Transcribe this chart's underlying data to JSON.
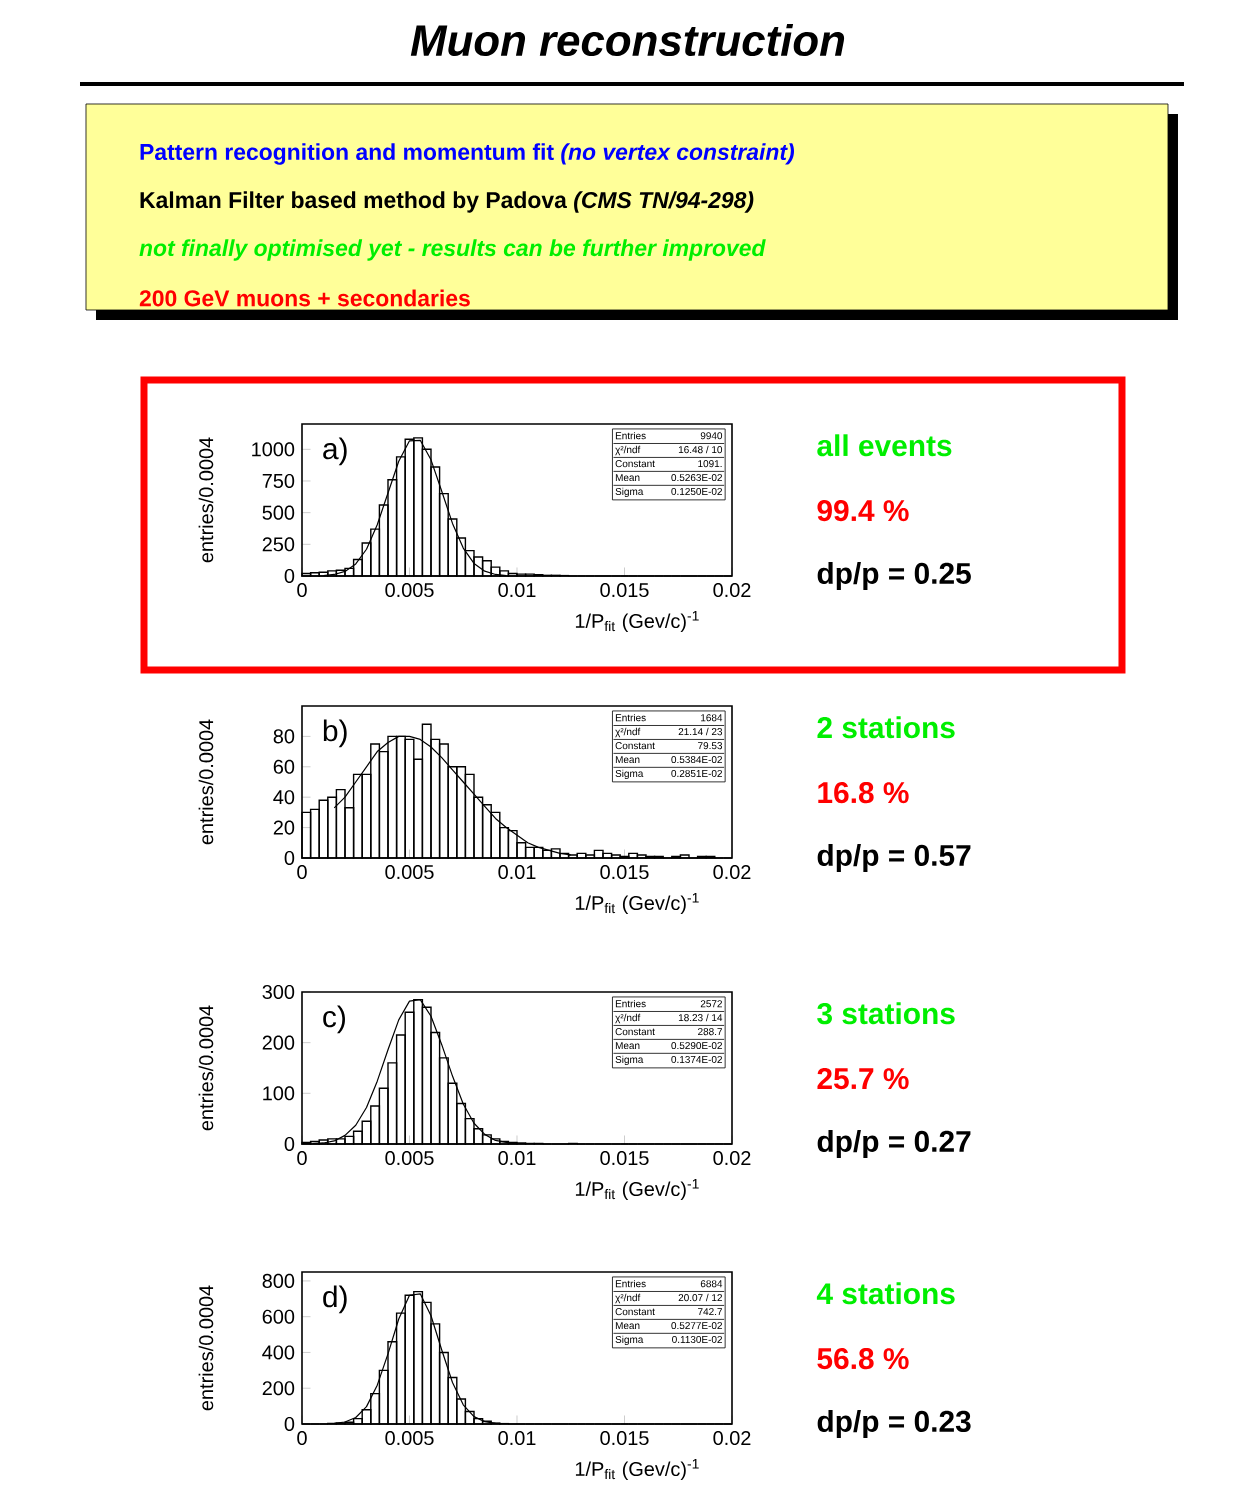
{
  "chart_data": [
    {
      "type": "other",
      "title": "Muon reconstruction",
      "annotations": [
        "Pattern recognition and momentum fit *(no vertex constraint)*",
        "Kalman Filter based method by Padova  *(CMS TN/94-298)*",
        "not finally optimised yet - results can be further improved",
        "200 GeV muons + secondaries"
      ]
    },
    {
      "type": "histogram",
      "xlabel": "1/P$_{fit}$ (Gev/c)$^{-1}$",
      "ylabel": "entries/0.0004",
      "color": "#000000",
      "xlim": [
        0,
        0.02
      ],
      "xticks": [
        0,
        0.005,
        0.01,
        0.015,
        0.02
      ],
      "ylim": [
        0,
        1200
      ],
      "yticks": [
        0,
        250,
        500,
        750,
        1000
      ],
      "bins": [
        0,
        0.0004,
        0.0008,
        0.0012,
        0.0016,
        0.002,
        0.0024,
        0.0028,
        0.0032,
        0.0036,
        0.004,
        0.0044,
        0.0048,
        0.0052,
        0.0056,
        0.006,
        0.0064,
        0.0068,
        0.0072,
        0.0076,
        0.008,
        0.0084,
        0.0088,
        0.0092,
        0.0096,
        0.01,
        0.0104,
        0.0108,
        0.0112,
        0.0116,
        0.012,
        0.0124,
        0.0128,
        0.0132,
        0.0136,
        0.014,
        0.0144,
        0.0148,
        0.0152,
        0.0156,
        0.016,
        0.0164,
        0.0168,
        0.0172,
        0.0176,
        0.018,
        0.0184,
        0.0188,
        0.0192,
        0.0196,
        0.02
      ],
      "values": [
        20,
        25,
        30,
        40,
        45,
        60,
        130,
        260,
        370,
        560,
        760,
        940,
        1080,
        1090,
        1000,
        860,
        650,
        450,
        300,
        200,
        150,
        120,
        70,
        40,
        20,
        15,
        15,
        10,
        5,
        5,
        3,
        0,
        0,
        0,
        0,
        0,
        0,
        0,
        0,
        0,
        0,
        0,
        0,
        0,
        0,
        0,
        0,
        0,
        0,
        0
      ],
      "series": [
        {
          "type": "line",
          "color": "#000000",
          "x": [
            0.001,
            0.0015,
            0.002,
            0.0025,
            0.003,
            0.0035,
            0.004,
            0.0045,
            0.005,
            0.0055,
            0.006,
            0.0065,
            0.007,
            0.0075,
            0.008,
            0.0085,
            0.009,
            0.0095
          ],
          "values": [
            3,
            12,
            36,
            95,
            211,
            405,
            655,
            906,
            1067,
            1071,
            917,
            669,
            415,
            220,
            99,
            38,
            12,
            3
          ]
        }
      ],
      "annotations": [
        "a)",
        "Entries",
        "9940",
        "χ²/ndf",
        "16.48  /  10",
        "Constant",
        "1091.",
        "Mean",
        "0.5263E-02",
        "Sigma",
        "0.1250E-02",
        "all events",
        "99.4 %",
        "dp/p = 0.25"
      ]
    },
    {
      "type": "histogram",
      "xlabel": "1/P$_{fit}$ (Gev/c)$^{-1}$",
      "ylabel": "entries/0.0004",
      "color": "#000000",
      "xlim": [
        0,
        0.02
      ],
      "xticks": [
        0,
        0.005,
        0.01,
        0.015,
        0.02
      ],
      "ylim": [
        0,
        100
      ],
      "yticks": [
        0,
        20,
        40,
        60,
        80
      ],
      "bins": [
        0,
        0.0004,
        0.0008,
        0.0012,
        0.0016,
        0.002,
        0.0024,
        0.0028,
        0.0032,
        0.0036,
        0.004,
        0.0044,
        0.0048,
        0.0052,
        0.0056,
        0.006,
        0.0064,
        0.0068,
        0.0072,
        0.0076,
        0.008,
        0.0084,
        0.0088,
        0.0092,
        0.0096,
        0.01,
        0.0104,
        0.0108,
        0.0112,
        0.0116,
        0.012,
        0.0124,
        0.0128,
        0.0132,
        0.0136,
        0.014,
        0.0144,
        0.0148,
        0.0152,
        0.0156,
        0.016,
        0.0164,
        0.0168,
        0.0172,
        0.0176,
        0.018,
        0.0184,
        0.0188,
        0.0192,
        0.0196,
        0.02
      ],
      "values": [
        30,
        32,
        38,
        40,
        45,
        33,
        55,
        55,
        75,
        70,
        80,
        80,
        78,
        65,
        88,
        78,
        75,
        60,
        60,
        55,
        40,
        35,
        30,
        20,
        18,
        10,
        7,
        7,
        5,
        6,
        3,
        2,
        3,
        2,
        5,
        3,
        2,
        1,
        3,
        2,
        1,
        1,
        0,
        1,
        2,
        0,
        1,
        1,
        0,
        0
      ],
      "series": [
        {
          "type": "line",
          "color": "#000000",
          "x": [
            0.0015,
            0.002,
            0.0025,
            0.003,
            0.0035,
            0.004,
            0.0045,
            0.005,
            0.0055,
            0.006,
            0.0065,
            0.007,
            0.0075,
            0.008,
            0.0085,
            0.009,
            0.0095,
            0.01,
            0.0105,
            0.011,
            0.0115,
            0.012,
            0.0125
          ],
          "values": [
            33,
            40,
            50,
            60,
            70,
            76,
            80,
            80,
            78,
            73,
            66,
            58,
            50,
            42,
            34,
            26,
            20,
            15,
            10,
            7,
            5,
            3,
            2
          ]
        }
      ],
      "annotations": [
        "b)",
        "Entries",
        "1684",
        "χ²/ndf",
        "21.14  /  23",
        "Constant",
        "79.53",
        "Mean",
        "0.5384E-02",
        "Sigma",
        "0.2851E-02",
        "2 stations",
        "16.8 %",
        "dp/p = 0.57"
      ]
    },
    {
      "type": "histogram",
      "xlabel": "1/P$_{fit}$ (Gev/c)$^{-1}$",
      "ylabel": "entries/0.0004",
      "color": "#000000",
      "xlim": [
        0,
        0.02
      ],
      "xticks": [
        0,
        0.005,
        0.01,
        0.015,
        0.02
      ],
      "ylim": [
        0,
        300
      ],
      "yticks": [
        0,
        100,
        200,
        300
      ],
      "bins": [
        0,
        0.0004,
        0.0008,
        0.0012,
        0.0016,
        0.002,
        0.0024,
        0.0028,
        0.0032,
        0.0036,
        0.004,
        0.0044,
        0.0048,
        0.0052,
        0.0056,
        0.006,
        0.0064,
        0.0068,
        0.0072,
        0.0076,
        0.008,
        0.0084,
        0.0088,
        0.0092,
        0.0096,
        0.01,
        0.0104,
        0.0108,
        0.0112,
        0.0116,
        0.012,
        0.0124,
        0.0128,
        0.0132,
        0.0136,
        0.014,
        0.0144,
        0.0148,
        0.0152,
        0.0156,
        0.016,
        0.0164,
        0.0168,
        0.0172,
        0.0176,
        0.018,
        0.0184,
        0.0188,
        0.0192,
        0.0196,
        0.02
      ],
      "values": [
        3,
        5,
        8,
        10,
        10,
        15,
        25,
        45,
        75,
        110,
        160,
        215,
        260,
        285,
        270,
        220,
        170,
        120,
        80,
        50,
        30,
        18,
        10,
        5,
        3,
        2,
        1,
        1,
        0,
        0,
        0,
        1,
        0,
        0,
        0,
        0,
        0,
        0,
        0,
        0,
        0,
        0,
        0,
        0,
        0,
        0,
        0,
        0,
        0,
        0
      ],
      "series": [
        {
          "type": "line",
          "color": "#000000",
          "x": [
            0.0005,
            0.001,
            0.0015,
            0.002,
            0.0025,
            0.003,
            0.0035,
            0.004,
            0.0045,
            0.005,
            0.0055,
            0.006,
            0.0065,
            0.007,
            0.0075,
            0.008,
            0.0085,
            0.009,
            0.0095,
            0.01
          ],
          "values": [
            1,
            2,
            6,
            17,
            37,
            72,
            124,
            186,
            245,
            282,
            285,
            252,
            196,
            134,
            79,
            41,
            19,
            7,
            3,
            1
          ]
        }
      ],
      "annotations": [
        "c)",
        "Entries",
        "2572",
        "χ²/ndf",
        "18.23  /  14",
        "Constant",
        "288.7",
        "Mean",
        "0.5290E-02",
        "Sigma",
        "0.1374E-02",
        "3 stations",
        "25.7 %",
        "dp/p = 0.27"
      ]
    },
    {
      "type": "histogram",
      "xlabel": "1/P$_{fit}$ (Gev/c)$^{-1}$",
      "ylabel": "entries/0.0004",
      "color": "#000000",
      "xlim": [
        0,
        0.02
      ],
      "xticks": [
        0,
        0.005,
        0.01,
        0.015,
        0.02
      ],
      "ylim": [
        0,
        850
      ],
      "yticks": [
        0,
        200,
        400,
        600,
        800
      ],
      "bins": [
        0,
        0.0004,
        0.0008,
        0.0012,
        0.0016,
        0.002,
        0.0024,
        0.0028,
        0.0032,
        0.0036,
        0.004,
        0.0044,
        0.0048,
        0.0052,
        0.0056,
        0.006,
        0.0064,
        0.0068,
        0.0072,
        0.0076,
        0.008,
        0.0084,
        0.0088,
        0.0092,
        0.0096,
        0.01,
        0.0104,
        0.0108,
        0.0112,
        0.0116,
        0.012,
        0.0124,
        0.0128,
        0.0132,
        0.0136,
        0.014,
        0.0144,
        0.0148,
        0.0152,
        0.0156,
        0.016,
        0.0164,
        0.0168,
        0.0172,
        0.0176,
        0.018,
        0.0184,
        0.0188,
        0.0192,
        0.0196,
        0.02
      ],
      "values": [
        0,
        0,
        0,
        3,
        5,
        10,
        30,
        80,
        170,
        300,
        460,
        620,
        720,
        740,
        680,
        560,
        400,
        260,
        140,
        70,
        30,
        15,
        5,
        2,
        0,
        0,
        0,
        0,
        0,
        0,
        0,
        0,
        0,
        0,
        0,
        0,
        0,
        0,
        0,
        0,
        0,
        0,
        0,
        0,
        0,
        0,
        0,
        0,
        0,
        0
      ],
      "series": [
        {
          "type": "line",
          "color": "#000000",
          "x": [
            0.0015,
            0.002,
            0.0025,
            0.003,
            0.0035,
            0.004,
            0.0045,
            0.005,
            0.0055,
            0.006,
            0.0065,
            0.007,
            0.0075,
            0.008,
            0.0085,
            0.009
          ],
          "values": [
            3,
            11,
            36,
            97,
            217,
            392,
            587,
            720,
            728,
            605,
            414,
            232,
            107,
            41,
            13,
            3
          ]
        }
      ],
      "annotations": [
        "d)",
        "Entries",
        "6884",
        "χ²/ndf",
        "20.07  /  12",
        "Constant",
        "742.7",
        "Mean",
        "0.5277E-02",
        "Sigma",
        "0.1130E-02",
        "4 stations",
        "56.8 %",
        "dp/p = 0.23"
      ]
    }
  ]
}
